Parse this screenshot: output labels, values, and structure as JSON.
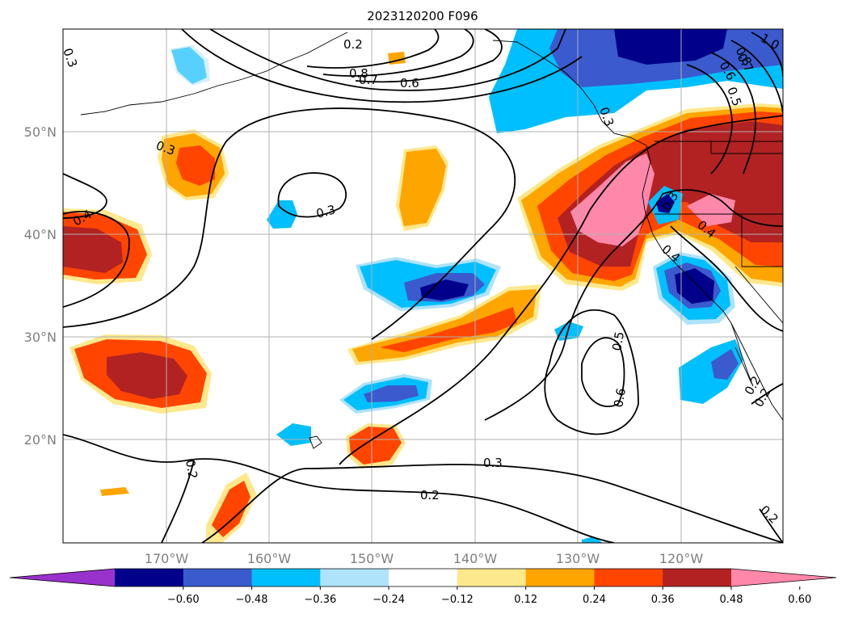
{
  "title": "2023120200 F096",
  "lat_labels": [
    "50°N",
    "40°N",
    "30°N",
    "20°N"
  ],
  "lon_labels": [
    "170°W",
    "160°W",
    "150°W",
    "140°W",
    "130°W",
    "120°W"
  ],
  "colorbar": {
    "colors": [
      "#9932cc",
      "#00008b",
      "#3a5acd",
      "#00bfff",
      "#afe2fb",
      "#ffffff",
      "#fee88c",
      "#ffa500",
      "#ff4500",
      "#b22222",
      "#ff88aa"
    ],
    "tick_labels": [
      "−0.60",
      "−0.48",
      "−0.36",
      "−0.24",
      "−0.12",
      "0.12",
      "0.24",
      "0.36",
      "0.48",
      "0.60"
    ]
  },
  "contour_labels": [
    "0.3",
    "0.3",
    "0.6",
    "0.7",
    "0.8",
    "0.5",
    "0.6",
    "0.3",
    "0.2",
    "0.2",
    "0.2",
    "0.4",
    "0.4",
    "0.3",
    "0.4",
    "0.2",
    "0.2",
    "0.5",
    "0.6",
    "0.7",
    "0.8",
    "1.0",
    "0.3",
    "0.2",
    "0.3"
  ]
}
